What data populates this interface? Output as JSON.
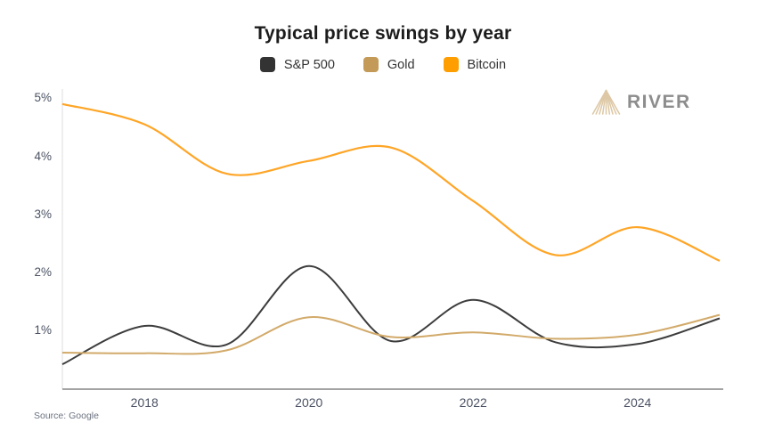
{
  "title": "Typical price swings by year",
  "source": "Source: Google",
  "logo": {
    "text": "RIVER",
    "icon_color": "#ddc7a4",
    "text_color": "#8d8d8d"
  },
  "axis": {
    "y_axis_color": "#e8e8e8",
    "x_axis_color": "#a3a3a3",
    "label_color": "#4b5263"
  },
  "chart_data": {
    "type": "line",
    "title": "Typical price swings by year",
    "xlabel": "",
    "ylabel": "",
    "x": [
      2017,
      2018,
      2019,
      2020,
      2021,
      2022,
      2023,
      2024,
      2025
    ],
    "series": [
      {
        "name": "S&P 500",
        "color": "#333333",
        "line_color": "#3d3d3d",
        "values": [
          0.42,
          1.08,
          0.76,
          2.11,
          0.82,
          1.53,
          0.8,
          0.77,
          1.21
        ]
      },
      {
        "name": "Gold",
        "color": "#c49a58",
        "line_color": "#d2aa6a",
        "values": [
          0.62,
          0.61,
          0.66,
          1.23,
          0.89,
          0.97,
          0.86,
          0.93,
          1.27
        ]
      },
      {
        "name": "Bitcoin",
        "color": "#ff9e00",
        "line_color": "#ffa526",
        "values": [
          4.9,
          4.55,
          3.7,
          3.92,
          4.15,
          3.23,
          2.3,
          2.78,
          2.2
        ]
      }
    ],
    "y_ticks": [
      {
        "value": 5,
        "label": "5%"
      },
      {
        "value": 4,
        "label": "4%"
      },
      {
        "value": 3,
        "label": "3%"
      },
      {
        "value": 2,
        "label": "2%"
      },
      {
        "value": 1,
        "label": "1%"
      }
    ],
    "x_ticks": [
      {
        "value": 2018,
        "label": "2018"
      },
      {
        "value": 2020,
        "label": "2020"
      },
      {
        "value": 2022,
        "label": "2022"
      },
      {
        "value": 2024,
        "label": "2024"
      }
    ],
    "xlim": [
      2017,
      2025
    ],
    "ylim": [
      0,
      5.15
    ],
    "grid": false,
    "legend_position": "top",
    "smoothing": "spline"
  }
}
